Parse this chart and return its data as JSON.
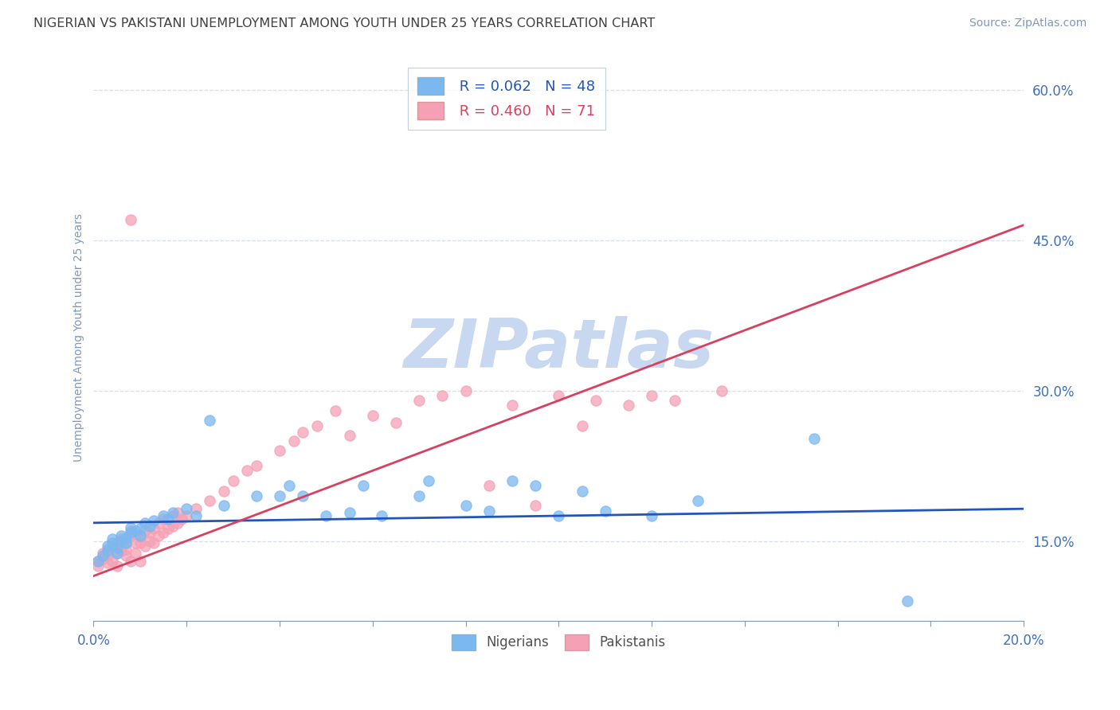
{
  "title": "NIGERIAN VS PAKISTANI UNEMPLOYMENT AMONG YOUTH UNDER 25 YEARS CORRELATION CHART",
  "source": "Source: ZipAtlas.com",
  "ylabel": "Unemployment Among Youth under 25 years",
  "xlim": [
    0.0,
    0.2
  ],
  "ylim": [
    0.07,
    0.635
  ],
  "xticks": [
    0.0,
    0.02,
    0.04,
    0.06,
    0.08,
    0.1,
    0.12,
    0.14,
    0.16,
    0.18,
    0.2
  ],
  "yticks": [
    0.15,
    0.3,
    0.45,
    0.6
  ],
  "ytick_labels": [
    "15.0%",
    "30.0%",
    "45.0%",
    "60.0%"
  ],
  "nigerian_color": "#7bb8f0",
  "pakistani_color": "#f5a0b5",
  "nigerian_R": 0.062,
  "nigerian_N": 48,
  "pakistani_R": 0.46,
  "pakistani_N": 71,
  "nigerian_trendline_color": "#2255bb",
  "pakistani_trendline_color": "#d94060",
  "watermark": "ZIPatlas",
  "watermark_color": "#c8d8f0",
  "grid_color": "#d8dfe8",
  "axis_color": "#8098b8",
  "tick_color": "#4070b8",
  "title_color": "#404040",
  "background_color": "#ffffff",
  "nigerian_x": [
    0.001,
    0.002,
    0.003,
    0.003,
    0.004,
    0.004,
    0.005,
    0.005,
    0.006,
    0.006,
    0.007,
    0.007,
    0.008,
    0.008,
    0.009,
    0.01,
    0.01,
    0.011,
    0.012,
    0.013,
    0.015,
    0.016,
    0.017,
    0.02,
    0.022,
    0.025,
    0.028,
    0.035,
    0.04,
    0.042,
    0.045,
    0.05,
    0.055,
    0.058,
    0.062,
    0.07,
    0.072,
    0.08,
    0.085,
    0.09,
    0.095,
    0.1,
    0.105,
    0.11,
    0.12,
    0.13,
    0.155,
    0.175
  ],
  "nigerian_y": [
    0.13,
    0.135,
    0.14,
    0.145,
    0.148,
    0.152,
    0.138,
    0.143,
    0.15,
    0.155,
    0.148,
    0.153,
    0.158,
    0.163,
    0.16,
    0.155,
    0.162,
    0.168,
    0.165,
    0.17,
    0.175,
    0.172,
    0.178,
    0.182,
    0.175,
    0.27,
    0.185,
    0.195,
    0.195,
    0.205,
    0.195,
    0.175,
    0.178,
    0.205,
    0.175,
    0.195,
    0.21,
    0.185,
    0.18,
    0.21,
    0.205,
    0.175,
    0.2,
    0.18,
    0.175,
    0.19,
    0.252,
    0.09
  ],
  "pakistani_x": [
    0.001,
    0.001,
    0.002,
    0.002,
    0.003,
    0.003,
    0.003,
    0.004,
    0.004,
    0.005,
    0.005,
    0.005,
    0.006,
    0.006,
    0.006,
    0.007,
    0.007,
    0.007,
    0.008,
    0.008,
    0.008,
    0.009,
    0.009,
    0.01,
    0.01,
    0.01,
    0.011,
    0.011,
    0.012,
    0.012,
    0.013,
    0.013,
    0.014,
    0.014,
    0.015,
    0.015,
    0.016,
    0.017,
    0.017,
    0.018,
    0.018,
    0.019,
    0.02,
    0.022,
    0.025,
    0.028,
    0.03,
    0.033,
    0.035,
    0.04,
    0.043,
    0.045,
    0.048,
    0.052,
    0.055,
    0.06,
    0.065,
    0.07,
    0.075,
    0.08,
    0.085,
    0.09,
    0.095,
    0.1,
    0.105,
    0.108,
    0.115,
    0.12,
    0.125,
    0.135,
    0.008
  ],
  "pakistani_y": [
    0.13,
    0.125,
    0.138,
    0.132,
    0.128,
    0.135,
    0.142,
    0.13,
    0.145,
    0.138,
    0.125,
    0.148,
    0.14,
    0.145,
    0.152,
    0.135,
    0.142,
    0.148,
    0.13,
    0.155,
    0.16,
    0.138,
    0.148,
    0.13,
    0.148,
    0.155,
    0.145,
    0.16,
    0.15,
    0.158,
    0.148,
    0.162,
    0.155,
    0.168,
    0.158,
    0.172,
    0.162,
    0.165,
    0.175,
    0.168,
    0.178,
    0.172,
    0.175,
    0.182,
    0.19,
    0.2,
    0.21,
    0.22,
    0.225,
    0.24,
    0.25,
    0.258,
    0.265,
    0.28,
    0.255,
    0.275,
    0.268,
    0.29,
    0.295,
    0.3,
    0.205,
    0.285,
    0.185,
    0.295,
    0.265,
    0.29,
    0.285,
    0.295,
    0.29,
    0.3,
    0.47
  ],
  "nig_trend_x0": 0.0,
  "nig_trend_y0": 0.168,
  "nig_trend_x1": 0.2,
  "nig_trend_y1": 0.182,
  "pak_trend_x0": 0.0,
  "pak_trend_y0": 0.115,
  "pak_trend_x1": 0.2,
  "pak_trend_y1": 0.465
}
